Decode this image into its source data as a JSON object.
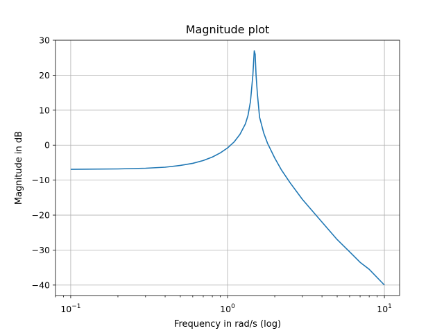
{
  "chart_data": {
    "type": "line",
    "title": "Magnitude plot",
    "xlabel": "Frequency in rad/s (log)",
    "ylabel": "Magnitude in dB",
    "xscale": "log",
    "xlim": [
      0.08,
      12.5
    ],
    "ylim": [
      -43,
      30
    ],
    "grid": true,
    "x_ticks": [
      {
        "value": 0.1,
        "base": "10",
        "exp": "−1"
      },
      {
        "value": 1,
        "base": "10",
        "exp": "0"
      },
      {
        "value": 10,
        "base": "10",
        "exp": "1"
      }
    ],
    "y_ticks": [
      {
        "value": 30,
        "label": "30"
      },
      {
        "value": 20,
        "label": "20"
      },
      {
        "value": 10,
        "label": "10"
      },
      {
        "value": 0,
        "label": "0"
      },
      {
        "value": -10,
        "label": "−10"
      },
      {
        "value": -20,
        "label": "−20"
      },
      {
        "value": -30,
        "label": "−30"
      },
      {
        "value": -40,
        "label": "−40"
      }
    ],
    "series": [
      {
        "color": "#1f77b4",
        "x": [
          0.1,
          0.2,
          0.3,
          0.4,
          0.5,
          0.6,
          0.7,
          0.8,
          0.9,
          1.0,
          1.1,
          1.2,
          1.3,
          1.35,
          1.4,
          1.45,
          1.48,
          1.5,
          1.52,
          1.55,
          1.6,
          1.7,
          1.8,
          2.0,
          2.2,
          2.5,
          3.0,
          4.0,
          5.0,
          6.0,
          7.0,
          8.0,
          10.0
        ],
        "y": [
          -6.9,
          -6.8,
          -6.6,
          -6.3,
          -5.8,
          -5.2,
          -4.4,
          -3.4,
          -2.2,
          -0.8,
          0.9,
          3.1,
          6.1,
          8.5,
          12.5,
          20.0,
          27.0,
          26.0,
          20.0,
          14.6,
          8.0,
          3.5,
          0.5,
          -3.7,
          -7.0,
          -10.7,
          -15.5,
          -22.0,
          -27.0,
          -30.5,
          -33.5,
          -35.5,
          -40.0
        ]
      }
    ]
  }
}
